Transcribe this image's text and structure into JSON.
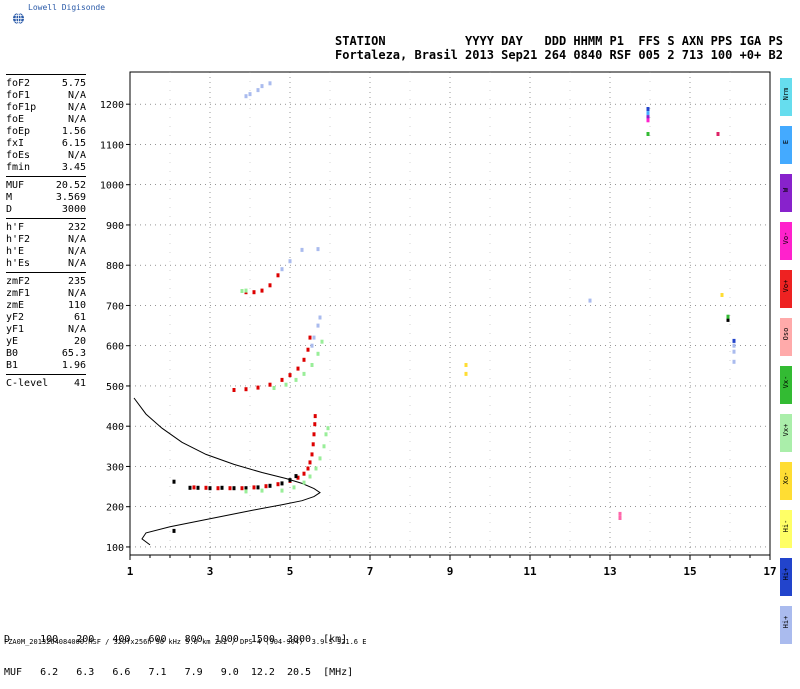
{
  "logo": {
    "text": "Lowell Digisonde",
    "icon": "globe-icon"
  },
  "header": {
    "line1": "STATION           YYYY DAY   DDD HHMM P1  FFS S AXN PPS IGA PS",
    "line2": "Fortaleza, Brasil 2013 Sep21 264 0840 RSF 005 2 713 100 +0+ B2"
  },
  "params": {
    "group1": [
      {
        "label": "foF2",
        "value": "5.75"
      },
      {
        "label": "foF1",
        "value": "N/A"
      },
      {
        "label": "foF1p",
        "value": "N/A"
      },
      {
        "label": "foE",
        "value": "N/A"
      },
      {
        "label": "foEp",
        "value": "1.56"
      },
      {
        "label": "fxI",
        "value": "6.15"
      },
      {
        "label": "foEs",
        "value": "N/A"
      },
      {
        "label": "fmin",
        "value": "3.45"
      }
    ],
    "group2": [
      {
        "label": "MUF",
        "value": "20.52"
      },
      {
        "label": "M",
        "value": "3.569"
      },
      {
        "label": "D",
        "value": "3000"
      }
    ],
    "group3": [
      {
        "label": "h'F",
        "value": "232"
      },
      {
        "label": "h'F2",
        "value": "N/A"
      },
      {
        "label": "h'E",
        "value": "N/A"
      },
      {
        "label": "h'Es",
        "value": "N/A"
      }
    ],
    "group4": [
      {
        "label": "zmF2",
        "value": "235"
      },
      {
        "label": "zmF1",
        "value": "N/A"
      },
      {
        "label": "zmE",
        "value": "110"
      },
      {
        "label": "yF2",
        "value": "61"
      },
      {
        "label": "yF1",
        "value": "N/A"
      },
      {
        "label": "yE",
        "value": "20"
      },
      {
        "label": "B0",
        "value": "65.3"
      },
      {
        "label": "B1",
        "value": "1.96"
      }
    ],
    "group5": [
      {
        "label": "C-level",
        "value": "41"
      }
    ]
  },
  "legend": [
    {
      "label": "Nrm",
      "color": "#66ddee"
    },
    {
      "label": "E",
      "color": "#44aaff"
    },
    {
      "label": "W",
      "color": "#8822cc"
    },
    {
      "label": "Vo-",
      "color": "#ff22cc"
    },
    {
      "label": "Vo+",
      "color": "#ee2222"
    },
    {
      "label": "Oso",
      "color": "#ffaaaa"
    },
    {
      "label": "Vx-",
      "color": "#33bb33"
    },
    {
      "label": "Vx+",
      "color": "#aaeeaa"
    },
    {
      "label": "Xo-",
      "color": "#ffdd33"
    },
    {
      "label": "Hi-",
      "color": "#ffff66"
    },
    {
      "label": "Hi+",
      "color": "#2244cc"
    },
    {
      "label": "Hi+",
      "color": "#aabbee"
    }
  ],
  "muf_table": {
    "row1_label": "D",
    "row1_values": [
      "100",
      "200",
      "400",
      "600",
      "800",
      "1000",
      "1500",
      "3000"
    ],
    "row1_unit": "[km]",
    "row2_label": "MUF",
    "row2_values": [
      "6.2",
      "6.3",
      "6.6",
      "7.1",
      "7.9",
      "9.0",
      "12.2",
      "20.5"
    ],
    "row2_unit": "[MHz]"
  },
  "footer": "FZA0M_2013264084000.RSF / 320fx256h 50 kHz 5.0 km 2x2 / DPS-4 (904-904)  3.9 S 321.6 E",
  "chart_data": {
    "type": "scatter",
    "xlim": [
      1,
      17
    ],
    "ylim": [
      80,
      1280
    ],
    "x_ticks": [
      1,
      3,
      5,
      7,
      9,
      11,
      13,
      15,
      17
    ],
    "y_ticks": [
      100,
      200,
      300,
      400,
      500,
      600,
      700,
      800,
      900,
      1000,
      1100,
      1200
    ],
    "grid": true,
    "profile": [
      [
        1.5,
        105
      ],
      [
        1.3,
        120
      ],
      [
        1.4,
        135
      ],
      [
        2.0,
        150
      ],
      [
        3.0,
        170
      ],
      [
        4.0,
        190
      ],
      [
        4.8,
        205
      ],
      [
        5.3,
        215
      ],
      [
        5.6,
        225
      ],
      [
        5.75,
        235
      ],
      [
        5.6,
        245
      ],
      [
        5.3,
        258
      ],
      [
        4.9,
        270
      ],
      [
        4.3,
        285
      ],
      [
        3.6,
        305
      ],
      [
        2.9,
        330
      ],
      [
        2.3,
        360
      ],
      [
        1.8,
        395
      ],
      [
        1.4,
        430
      ],
      [
        1.1,
        470
      ]
    ],
    "series": [
      {
        "color": "#dd0000",
        "points": [
          [
            2.6,
            248
          ],
          [
            2.9,
            247
          ],
          [
            3.2,
            246
          ],
          [
            3.5,
            246
          ],
          [
            3.8,
            246
          ],
          [
            4.1,
            248
          ],
          [
            4.4,
            251
          ],
          [
            4.7,
            256
          ],
          [
            5.0,
            264
          ],
          [
            5.2,
            272
          ],
          [
            5.35,
            282
          ],
          [
            5.45,
            295
          ],
          [
            5.5,
            310
          ],
          [
            5.55,
            330
          ],
          [
            5.58,
            355
          ],
          [
            5.6,
            380
          ],
          [
            5.62,
            405
          ],
          [
            5.63,
            425
          ]
        ]
      },
      {
        "color": "#000000",
        "points": [
          [
            2.1,
            262
          ],
          [
            2.5,
            247
          ],
          [
            2.7,
            247
          ],
          [
            3.0,
            246
          ],
          [
            3.3,
            247
          ],
          [
            3.6,
            246
          ],
          [
            3.9,
            246
          ],
          [
            4.2,
            248
          ],
          [
            4.5,
            252
          ],
          [
            4.8,
            258
          ],
          [
            5.0,
            266
          ],
          [
            5.15,
            276
          ]
        ]
      },
      {
        "color": "#99ee99",
        "points": [
          [
            4.8,
            240
          ],
          [
            5.1,
            248
          ],
          [
            5.35,
            260
          ],
          [
            5.5,
            275
          ],
          [
            5.65,
            295
          ],
          [
            5.75,
            320
          ],
          [
            5.85,
            350
          ],
          [
            5.9,
            380
          ],
          [
            5.95,
            395
          ],
          [
            3.9,
            238
          ],
          [
            4.3,
            240
          ]
        ]
      },
      {
        "color": "#dd0000",
        "points": [
          [
            3.6,
            490
          ],
          [
            3.9,
            492
          ],
          [
            4.2,
            496
          ],
          [
            4.5,
            503
          ],
          [
            4.8,
            515
          ],
          [
            5.0,
            527
          ],
          [
            5.2,
            543
          ],
          [
            5.35,
            565
          ],
          [
            5.45,
            590
          ],
          [
            5.5,
            620
          ]
        ]
      },
      {
        "color": "#99ee99",
        "points": [
          [
            4.6,
            495
          ],
          [
            4.9,
            503
          ],
          [
            5.15,
            515
          ],
          [
            5.35,
            530
          ],
          [
            5.55,
            552
          ],
          [
            5.7,
            580
          ],
          [
            5.8,
            610
          ]
        ]
      },
      {
        "color": "#aabbee",
        "points": [
          [
            5.6,
            620
          ],
          [
            5.7,
            650
          ],
          [
            5.75,
            670
          ],
          [
            5.55,
            600
          ]
        ]
      },
      {
        "color": "#dd0000",
        "points": [
          [
            3.9,
            733
          ],
          [
            4.1,
            733
          ],
          [
            4.3,
            737
          ],
          [
            4.5,
            750
          ],
          [
            4.7,
            775
          ]
        ]
      },
      {
        "color": "#99ee99",
        "points": [
          [
            3.8,
            736
          ],
          [
            3.9,
            737
          ]
        ]
      },
      {
        "color": "#aabbee",
        "points": [
          [
            5.3,
            838
          ],
          [
            5.7,
            840
          ],
          [
            4.8,
            790
          ],
          [
            5.0,
            810
          ]
        ]
      },
      {
        "color": "#aabbee",
        "points": [
          [
            3.9,
            1220
          ],
          [
            4.0,
            1225
          ],
          [
            4.2,
            1235
          ],
          [
            4.3,
            1245
          ],
          [
            4.5,
            1252
          ]
        ]
      },
      {
        "color": "#ffdd33",
        "points": [
          [
            9.4,
            530
          ],
          [
            9.4,
            552
          ]
        ]
      },
      {
        "color": "#aabbee",
        "points": [
          [
            12.5,
            712
          ]
        ]
      },
      {
        "color": "#ff66aa",
        "points": [
          [
            13.25,
            172
          ],
          [
            13.25,
            182
          ]
        ]
      },
      {
        "color": "#2244cc",
        "points": [
          [
            13.95,
            1188
          ]
        ]
      },
      {
        "color": "#44aaff",
        "points": [
          [
            13.95,
            1178
          ]
        ]
      },
      {
        "color": "#8822cc",
        "points": [
          [
            13.95,
            1168
          ]
        ]
      },
      {
        "color": "#ff22cc",
        "points": [
          [
            13.95,
            1160
          ]
        ]
      },
      {
        "color": "#33bb33",
        "points": [
          [
            13.95,
            1126
          ]
        ]
      },
      {
        "color": "#dd2266",
        "points": [
          [
            15.7,
            1126
          ]
        ]
      },
      {
        "color": "#ffdd33",
        "points": [
          [
            15.8,
            726
          ]
        ]
      },
      {
        "color": "#000000",
        "points": [
          [
            15.95,
            664
          ],
          [
            2.1,
            140
          ]
        ]
      },
      {
        "color": "#33bb33",
        "points": [
          [
            15.95,
            672
          ]
        ]
      },
      {
        "color": "#2244cc",
        "points": [
          [
            16.1,
            612
          ]
        ]
      },
      {
        "color": "#aabbee",
        "points": [
          [
            16.1,
            600
          ],
          [
            16.1,
            585
          ],
          [
            16.1,
            560
          ]
        ]
      }
    ]
  }
}
